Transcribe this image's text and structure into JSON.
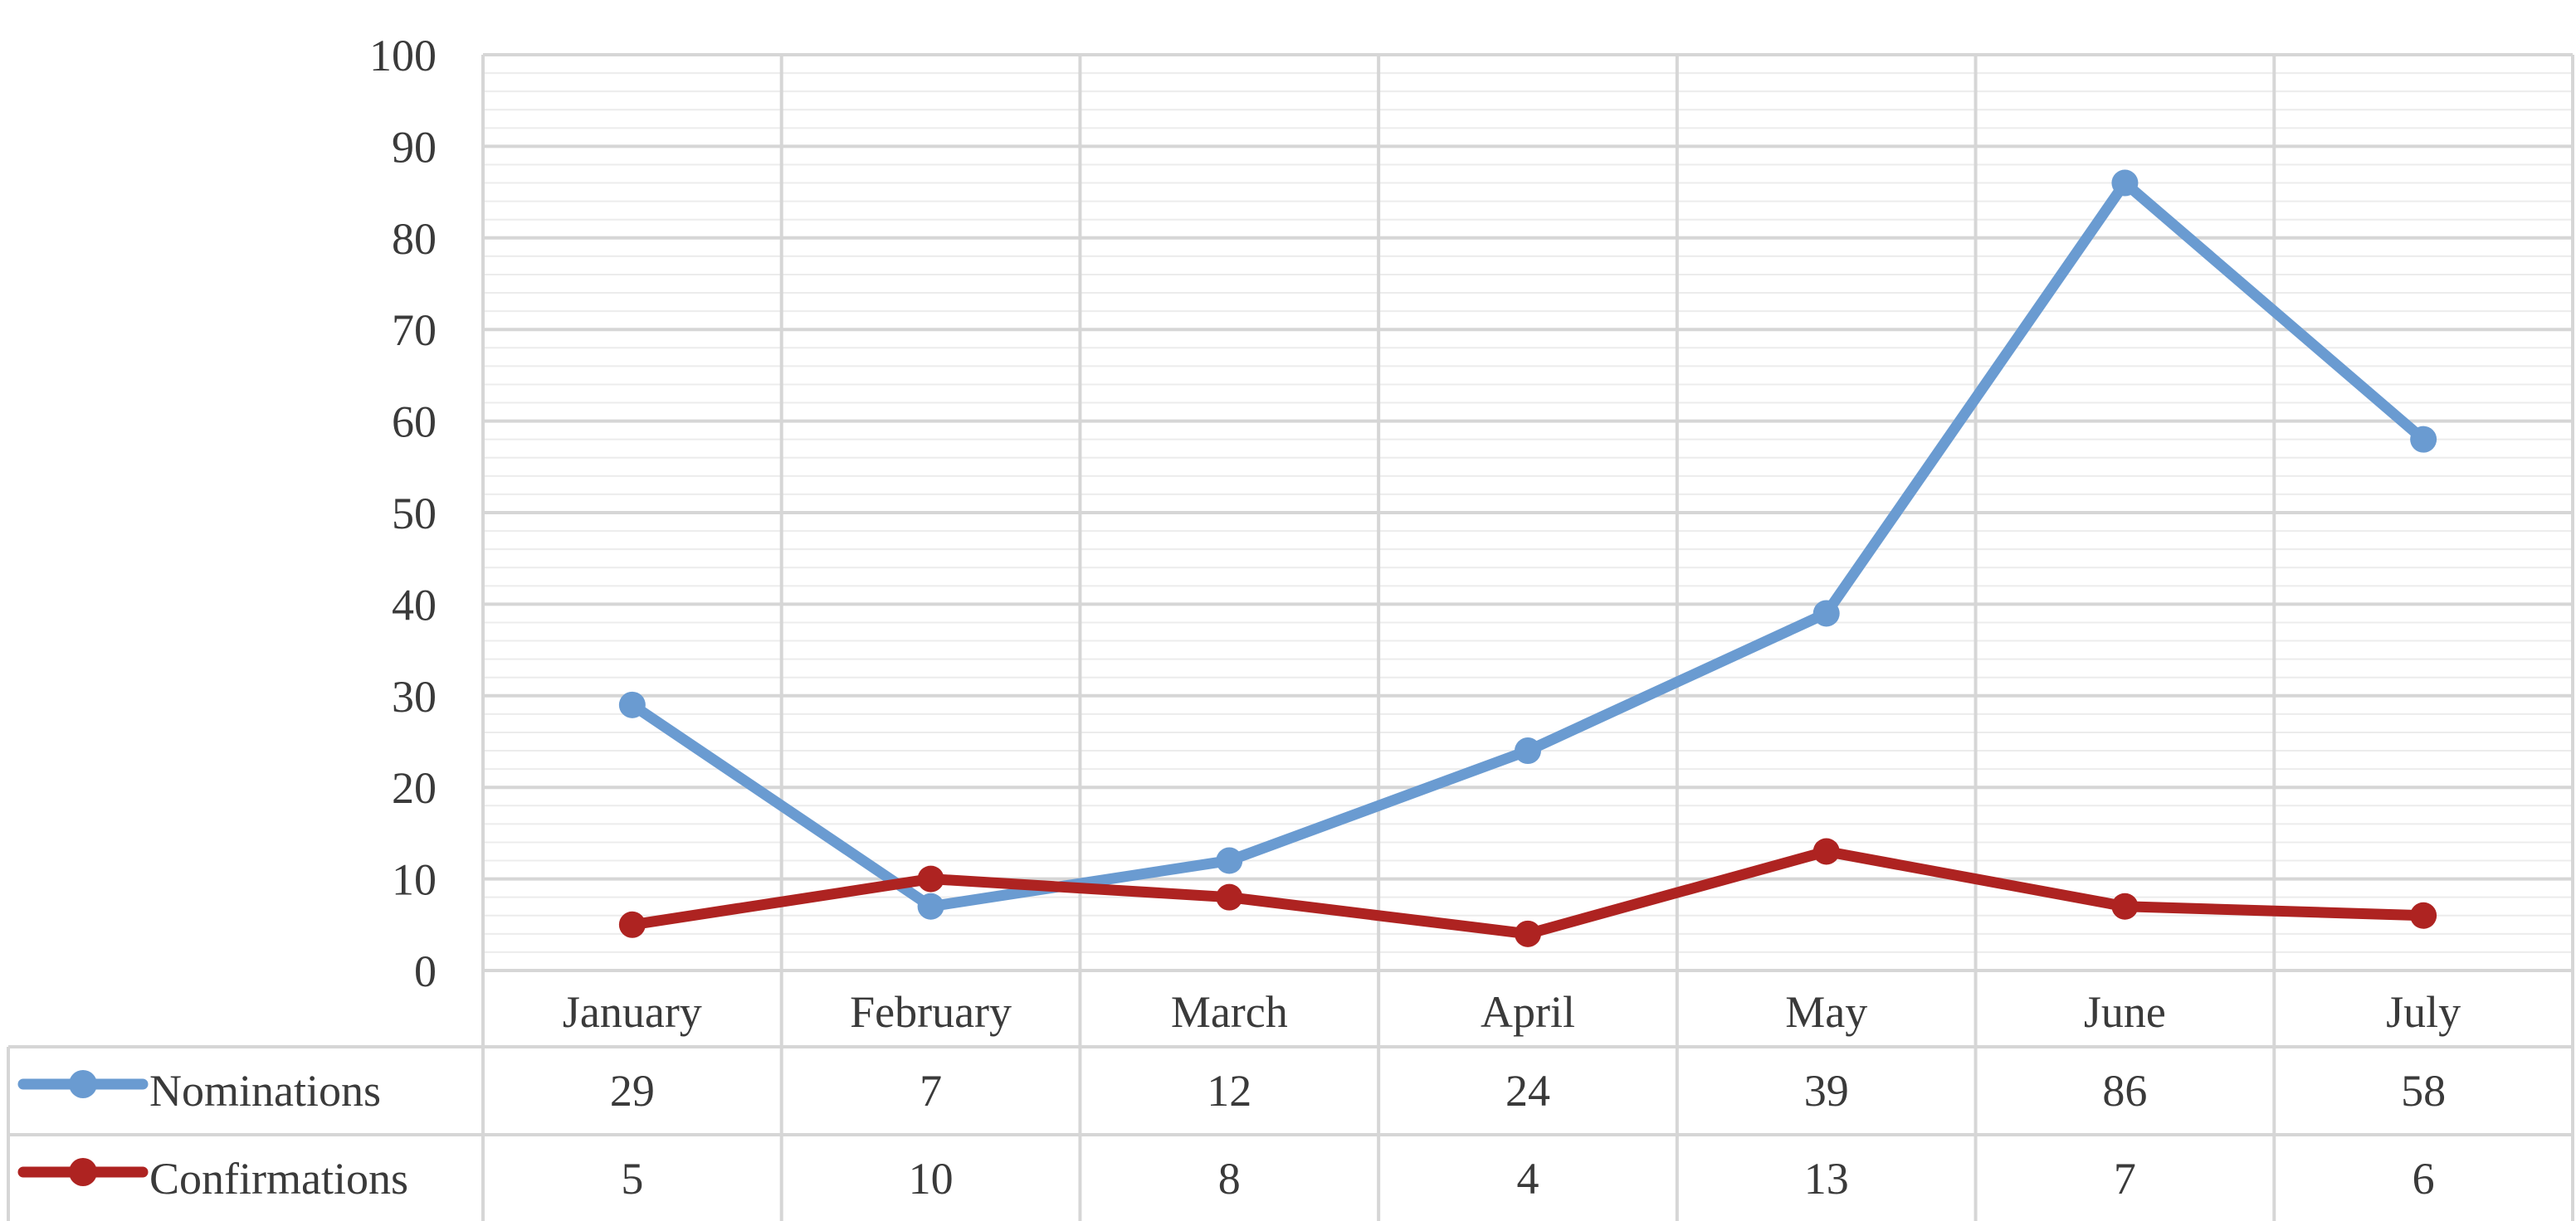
{
  "chart_data": {
    "type": "line",
    "categories": [
      "January",
      "February",
      "March",
      "April",
      "May",
      "June",
      "July"
    ],
    "series": [
      {
        "name": "Nominations",
        "values": [
          29,
          7,
          12,
          24,
          39,
          86,
          58
        ],
        "color": "#6a9bd1"
      },
      {
        "name": "Confirmations",
        "values": [
          5,
          10,
          8,
          4,
          13,
          7,
          6
        ],
        "color": "#ae2321"
      }
    ],
    "ylim": [
      0,
      100
    ],
    "yticks": [
      0,
      10,
      20,
      30,
      40,
      50,
      60,
      70,
      80,
      90,
      100
    ],
    "grid": true,
    "data_table": true
  }
}
